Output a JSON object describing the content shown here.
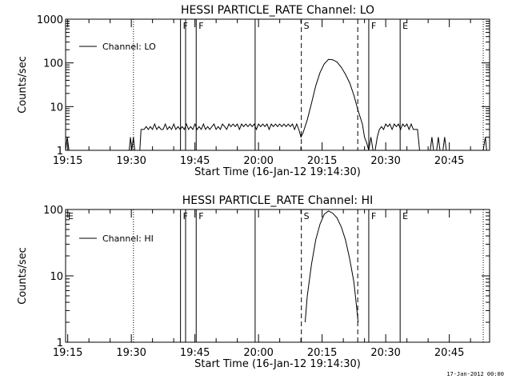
{
  "footer": {
    "date_stamp": "17-Jan-2012 00:00"
  },
  "chart_data": [
    {
      "type": "line",
      "title": "HESSI PARTICLE_RATE Channel: LO",
      "xlabel": "Start Time (16-Jan-12 19:14:30)",
      "ylabel": "Counts/sec",
      "x_unit": "minutes after 19:14:30",
      "xlim": [
        0,
        100
      ],
      "ylim": [
        1,
        1000
      ],
      "y_scale": "log",
      "x_ticks": [
        "19:15",
        "19:30",
        "19:45",
        "20:00",
        "20:15",
        "20:30",
        "20:45"
      ],
      "x_tick_values": [
        0.5,
        15.5,
        30.5,
        45.5,
        60.5,
        75.5,
        90.5
      ],
      "y_ticks": [
        "1",
        "10",
        "100",
        "1000"
      ],
      "y_tick_values": [
        1,
        10,
        100,
        1000
      ],
      "legend": {
        "position": "top-left",
        "label": "Channel: LO"
      },
      "series": [
        {
          "name": "Channel: LO",
          "points": [
            [
              0,
              1
            ],
            [
              0.4,
              2
            ],
            [
              0.8,
              1
            ],
            [
              1.2,
              1
            ],
            [
              15,
              1
            ],
            [
              15.3,
              2
            ],
            [
              15.6,
              1
            ],
            [
              16,
              2
            ],
            [
              16.3,
              1
            ],
            [
              16.6,
              1
            ],
            [
              17.5,
              1
            ],
            [
              17.8,
              3
            ],
            [
              18.5,
              3
            ],
            [
              19,
              3.5
            ],
            [
              19.5,
              3
            ],
            [
              20,
              3.5
            ],
            [
              20.5,
              3
            ],
            [
              21,
              4
            ],
            [
              21.5,
              3
            ],
            [
              22,
              3.5
            ],
            [
              22.5,
              3
            ],
            [
              23,
              3
            ],
            [
              23.5,
              4
            ],
            [
              24,
              3
            ],
            [
              24.5,
              3.5
            ],
            [
              25,
              3
            ],
            [
              25.5,
              4
            ],
            [
              26,
              3
            ],
            [
              26.5,
              3.5
            ],
            [
              27,
              3
            ],
            [
              27.5,
              3.5
            ],
            [
              28,
              3
            ],
            [
              28.5,
              4
            ],
            [
              29,
              3
            ],
            [
              29.5,
              3.5
            ],
            [
              30,
              3
            ],
            [
              30.5,
              4
            ],
            [
              31,
              3
            ],
            [
              31.5,
              3.5
            ],
            [
              32,
              3
            ],
            [
              32.5,
              4
            ],
            [
              33,
              3
            ],
            [
              33.5,
              3.5
            ],
            [
              34,
              3
            ],
            [
              34.5,
              3.5
            ],
            [
              35,
              4
            ],
            [
              35.5,
              3
            ],
            [
              36,
              3.5
            ],
            [
              36.5,
              3
            ],
            [
              37,
              4
            ],
            [
              37.5,
              3.5
            ],
            [
              38,
              3
            ],
            [
              38.5,
              4
            ],
            [
              39,
              3.5
            ],
            [
              39.5,
              4
            ],
            [
              40,
              3.5
            ],
            [
              40.5,
              4
            ],
            [
              41,
              3
            ],
            [
              41.5,
              4
            ],
            [
              42,
              3.5
            ],
            [
              42.5,
              4
            ],
            [
              43,
              3.5
            ],
            [
              43.5,
              4
            ],
            [
              44,
              3.5
            ],
            [
              44.5,
              4
            ],
            [
              45,
              3
            ],
            [
              45.5,
              4
            ],
            [
              46,
              3.5
            ],
            [
              46.5,
              4
            ],
            [
              47,
              3.5
            ],
            [
              47.5,
              4
            ],
            [
              48,
              3
            ],
            [
              48.5,
              4
            ],
            [
              49,
              3.5
            ],
            [
              49.5,
              4
            ],
            [
              50,
              3.5
            ],
            [
              50.5,
              4
            ],
            [
              51,
              3.5
            ],
            [
              51.5,
              4
            ],
            [
              52,
              3.5
            ],
            [
              52.5,
              4
            ],
            [
              53,
              3.5
            ],
            [
              53.5,
              4
            ],
            [
              54,
              3
            ],
            [
              54.5,
              4
            ],
            [
              55,
              3
            ],
            [
              55.5,
              2
            ],
            [
              56,
              2.5
            ],
            [
              57,
              5
            ],
            [
              58,
              12
            ],
            [
              59,
              30
            ],
            [
              60,
              60
            ],
            [
              61,
              95
            ],
            [
              62,
              120
            ],
            [
              63,
              118
            ],
            [
              64,
              105
            ],
            [
              65,
              80
            ],
            [
              66,
              55
            ],
            [
              67,
              35
            ],
            [
              68,
              18
            ],
            [
              69,
              8
            ],
            [
              70,
              4
            ],
            [
              70.5,
              2
            ],
            [
              71,
              1.5
            ],
            [
              71.5,
              1
            ],
            [
              72,
              2
            ],
            [
              72.5,
              1
            ],
            [
              73,
              1
            ],
            [
              73.5,
              2
            ],
            [
              74,
              3
            ],
            [
              74.5,
              3.5
            ],
            [
              75,
              3
            ],
            [
              75.5,
              4
            ],
            [
              76,
              3.5
            ],
            [
              76.5,
              4
            ],
            [
              77,
              3
            ],
            [
              77.5,
              4
            ],
            [
              78,
              3.5
            ],
            [
              78.5,
              4
            ],
            [
              79,
              3
            ],
            [
              79.5,
              4
            ],
            [
              80,
              3.5
            ],
            [
              80.5,
              4
            ],
            [
              81,
              3
            ],
            [
              81.5,
              4
            ],
            [
              82,
              3
            ],
            [
              82.5,
              3
            ],
            [
              83,
              3
            ],
            [
              83.5,
              1
            ],
            [
              84,
              1
            ],
            [
              86,
              1
            ],
            [
              86.4,
              2
            ],
            [
              86.8,
              1
            ],
            [
              87.5,
              1
            ],
            [
              87.9,
              2
            ],
            [
              88.3,
              1
            ],
            [
              89,
              1
            ],
            [
              89.4,
              2
            ],
            [
              89.8,
              1
            ],
            [
              98.5,
              1
            ],
            [
              99,
              2
            ],
            [
              99.3,
              1
            ]
          ]
        }
      ],
      "markers": [
        {
          "label": "F",
          "x": 27.1,
          "style": "solid"
        },
        {
          "label": "",
          "x": 28.3,
          "style": "solid"
        },
        {
          "label": "F",
          "x": 30.8,
          "style": "solid"
        },
        {
          "label": "",
          "x": 44.7,
          "style": "solid"
        },
        {
          "label": "S",
          "x": 55.6,
          "style": "dashed"
        },
        {
          "label": "",
          "x": 68.9,
          "style": "dashed"
        },
        {
          "label": "F",
          "x": 71.5,
          "style": "solid"
        },
        {
          "label": "E",
          "x": 78.9,
          "style": "solid"
        },
        {
          "label": "",
          "x": 16.0,
          "style": "dotted"
        },
        {
          "label": "",
          "x": 98.5,
          "style": "dotted"
        }
      ]
    },
    {
      "type": "line",
      "title": "HESSI PARTICLE_RATE Channel: HI",
      "xlabel": "Start Time (16-Jan-12 19:14:30)",
      "ylabel": "Counts/sec",
      "x_unit": "minutes after 19:14:30",
      "xlim": [
        0,
        100
      ],
      "ylim": [
        1,
        100
      ],
      "y_scale": "log",
      "x_ticks": [
        "19:15",
        "19:30",
        "19:45",
        "20:00",
        "20:15",
        "20:30",
        "20:45"
      ],
      "x_tick_values": [
        0.5,
        15.5,
        30.5,
        45.5,
        60.5,
        75.5,
        90.5
      ],
      "y_ticks": [
        "1",
        "10",
        "100"
      ],
      "y_tick_values": [
        1,
        10,
        100
      ],
      "legend": {
        "position": "top-left",
        "label": "Channel: HI"
      },
      "series": [
        {
          "name": "Channel: HI",
          "points": [
            [
              56.5,
              2
            ],
            [
              57,
              5
            ],
            [
              58,
              15
            ],
            [
              59,
              35
            ],
            [
              60,
              60
            ],
            [
              61,
              85
            ],
            [
              62,
              95
            ],
            [
              63,
              88
            ],
            [
              64,
              75
            ],
            [
              65,
              55
            ],
            [
              66,
              35
            ],
            [
              67,
              18
            ],
            [
              68,
              8
            ],
            [
              68.5,
              4
            ],
            [
              69,
              2
            ]
          ]
        }
      ],
      "markers": [
        {
          "label": "E",
          "x": 0,
          "style": "none"
        },
        {
          "label": "F",
          "x": 27.1,
          "style": "solid"
        },
        {
          "label": "",
          "x": 28.3,
          "style": "solid"
        },
        {
          "label": "F",
          "x": 30.8,
          "style": "solid"
        },
        {
          "label": "",
          "x": 44.7,
          "style": "solid"
        },
        {
          "label": "S",
          "x": 55.6,
          "style": "dashed"
        },
        {
          "label": "",
          "x": 68.9,
          "style": "dashed"
        },
        {
          "label": "F",
          "x": 71.5,
          "style": "solid"
        },
        {
          "label": "E",
          "x": 78.9,
          "style": "solid"
        },
        {
          "label": "",
          "x": 16.0,
          "style": "dotted"
        },
        {
          "label": "",
          "x": 98.5,
          "style": "dotted"
        }
      ]
    }
  ]
}
